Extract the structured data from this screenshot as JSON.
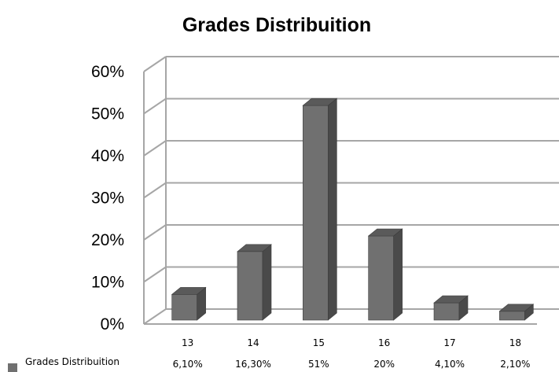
{
  "chart_data": {
    "type": "bar",
    "title": "Grades Distribuition",
    "categories": [
      "13",
      "14",
      "15",
      "16",
      "17",
      "18"
    ],
    "series": [
      {
        "name": "Grades Distribuition",
        "values": [
          6.1,
          16.3,
          51,
          20,
          4.1,
          2.1
        ],
        "value_labels": [
          "6,10%",
          "16,30%",
          "51%",
          "20%",
          "4,10%",
          "2,10%"
        ],
        "color": "#707070"
      }
    ],
    "ylim": [
      0,
      60
    ],
    "yticks": [
      "0%",
      "10%",
      "20%",
      "30%",
      "40%",
      "50%",
      "60%"
    ],
    "grid": true,
    "style": "3d-column",
    "legend": "data-table-below"
  }
}
